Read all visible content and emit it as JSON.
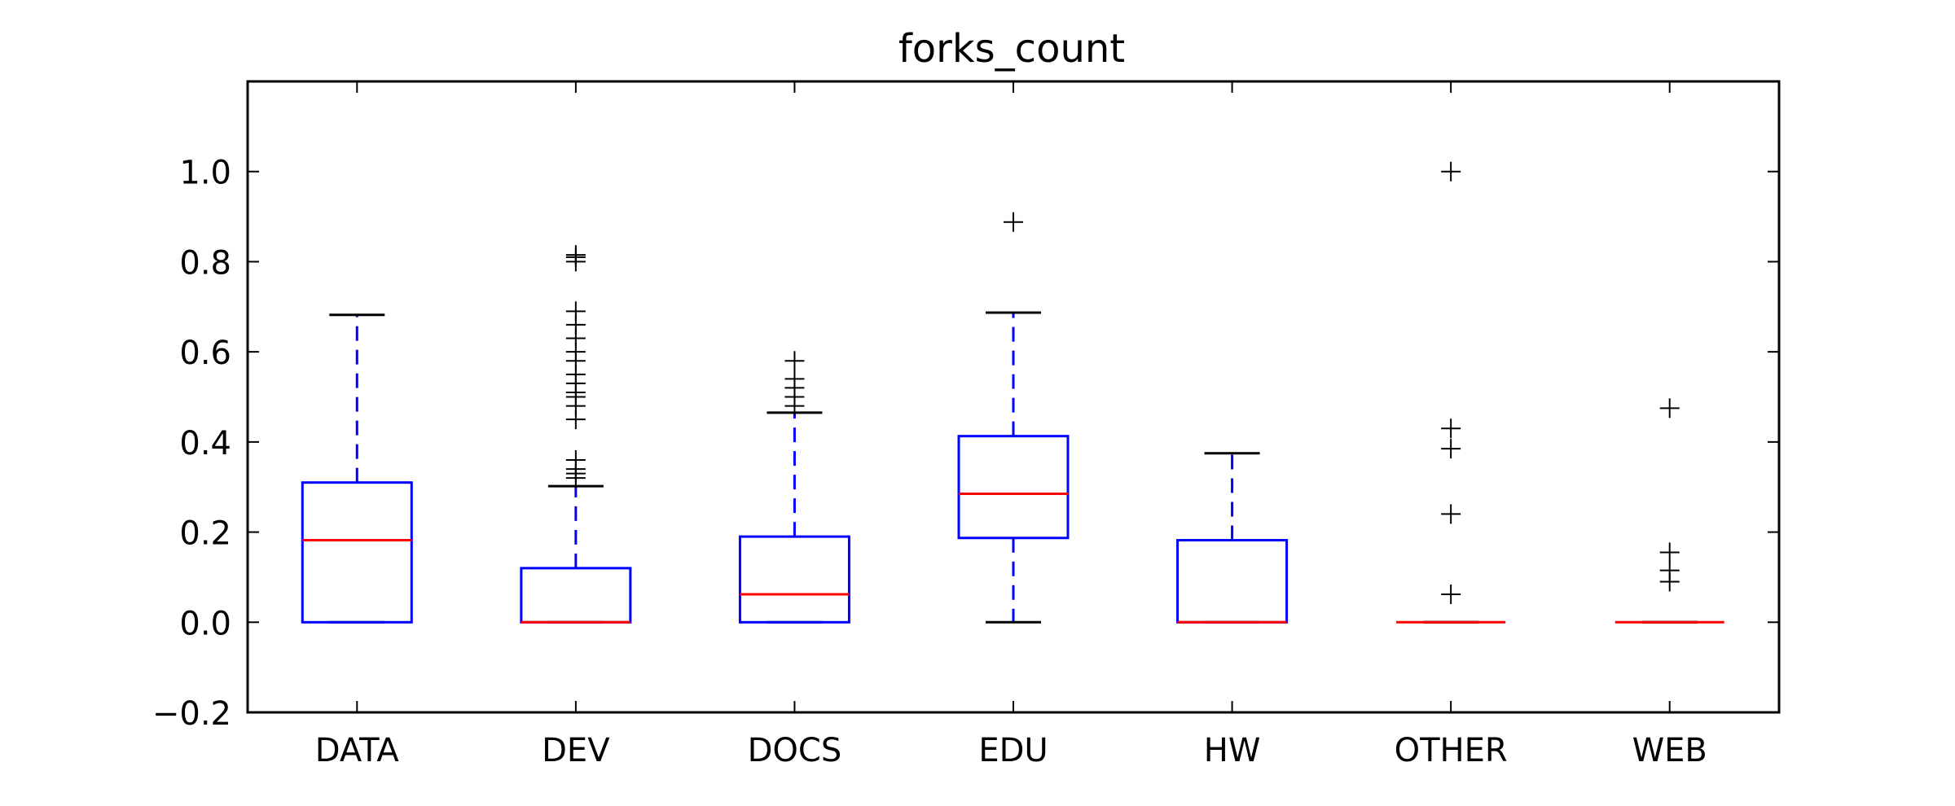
{
  "chart_data": {
    "type": "boxplot",
    "title": "forks_count",
    "xlabel": "",
    "ylabel": "",
    "categories": [
      "DATA",
      "DEV",
      "DOCS",
      "EDU",
      "HW",
      "OTHER",
      "WEB"
    ],
    "ylim": [
      -0.2,
      1.2
    ],
    "yticks": [
      -0.2,
      0.0,
      0.2,
      0.4,
      0.6,
      0.8,
      1.0
    ],
    "ytick_labels": [
      "−0.2",
      "0.0",
      "0.2",
      "0.4",
      "0.6",
      "0.8",
      "1.0"
    ],
    "grid": false,
    "legend": "none",
    "colors": {
      "box": "#0000ff",
      "median": "#ff0000",
      "whisker": "#0000ff",
      "cap": "#000000",
      "flier": "#000000",
      "axes": "#000000"
    },
    "boxes": [
      {
        "category": "DATA",
        "whislo": 0.0,
        "q1": 0.0,
        "med": 0.182,
        "q3": 0.31,
        "whishi": 0.682,
        "fliers": []
      },
      {
        "category": "DEV",
        "whislo": 0.0,
        "q1": 0.0,
        "med": 0.0,
        "q3": 0.12,
        "whishi": 0.302,
        "fliers": [
          0.32,
          0.33,
          0.34,
          0.36,
          0.45,
          0.48,
          0.5,
          0.51,
          0.53,
          0.55,
          0.58,
          0.6,
          0.63,
          0.66,
          0.69,
          0.8,
          0.81,
          0.815
        ]
      },
      {
        "category": "DOCS",
        "whislo": 0.0,
        "q1": 0.0,
        "med": 0.062,
        "q3": 0.19,
        "whishi": 0.465,
        "fliers": [
          0.48,
          0.5,
          0.52,
          0.54,
          0.58
        ]
      },
      {
        "category": "EDU",
        "whislo": 0.0,
        "q1": 0.187,
        "med": 0.285,
        "q3": 0.413,
        "whishi": 0.687,
        "fliers": [
          0.888
        ]
      },
      {
        "category": "HW",
        "whislo": 0.0,
        "q1": 0.0,
        "med": 0.0,
        "q3": 0.182,
        "whishi": 0.375,
        "fliers": []
      },
      {
        "category": "OTHER",
        "whislo": 0.0,
        "q1": 0.0,
        "med": 0.0,
        "q3": 0.0,
        "whishi": 0.0,
        "fliers": [
          0.062,
          0.24,
          0.385,
          0.43,
          1.0
        ]
      },
      {
        "category": "WEB",
        "whislo": 0.0,
        "q1": 0.0,
        "med": 0.0,
        "q3": 0.0,
        "whishi": 0.0,
        "fliers": [
          0.09,
          0.115,
          0.155,
          0.475
        ]
      }
    ]
  }
}
